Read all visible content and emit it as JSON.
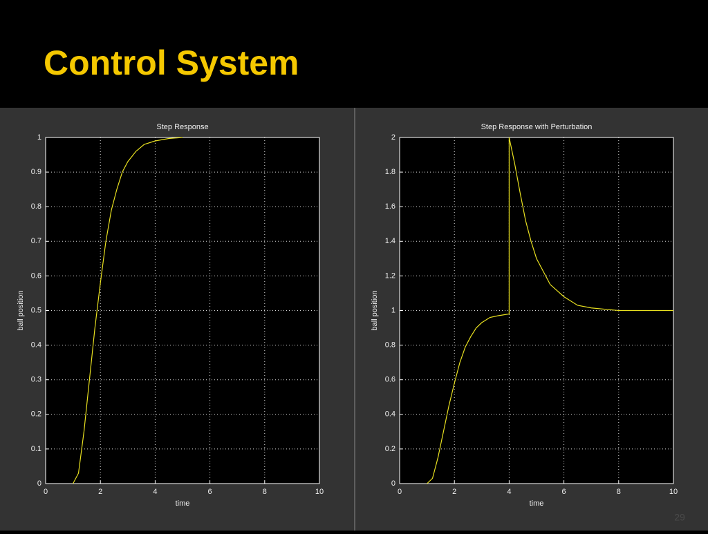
{
  "title": "Control System",
  "page_number": "29",
  "chart_data": [
    {
      "type": "line",
      "title": "Step Response",
      "xlabel": "time",
      "ylabel": "ball position",
      "x": [
        1.0,
        1.2,
        1.4,
        1.6,
        1.8,
        2.0,
        2.2,
        2.4,
        2.6,
        2.8,
        3.0,
        3.3,
        3.6,
        4.0,
        4.5,
        5.0
      ],
      "values": [
        0,
        0.03,
        0.15,
        0.3,
        0.45,
        0.58,
        0.7,
        0.79,
        0.85,
        0.9,
        0.93,
        0.96,
        0.98,
        0.99,
        0.997,
        1.0
      ],
      "color": "#e8e020",
      "xlim": [
        0,
        10
      ],
      "ylim": [
        0,
        1
      ],
      "xticks": [
        0,
        2,
        4,
        6,
        8,
        10
      ],
      "yticks": [
        0,
        0.1,
        0.2,
        0.3,
        0.4,
        0.5,
        0.6,
        0.7,
        0.8,
        0.9,
        1
      ],
      "grid": true
    },
    {
      "type": "line",
      "title": "Step Response with Perturbation",
      "xlabel": "time",
      "ylabel": "ball position",
      "x": [
        1.0,
        1.2,
        1.4,
        1.6,
        1.8,
        2.0,
        2.2,
        2.4,
        2.6,
        2.8,
        3.0,
        3.3,
        3.6,
        4.0,
        4.0,
        4.2,
        4.4,
        4.6,
        4.8,
        5.0,
        5.5,
        6.0,
        6.5,
        7.0,
        8.0,
        10.0
      ],
      "values": [
        0,
        0.03,
        0.15,
        0.3,
        0.45,
        0.58,
        0.7,
        0.79,
        0.85,
        0.9,
        0.93,
        0.96,
        0.97,
        0.98,
        2.0,
        1.85,
        1.68,
        1.52,
        1.4,
        1.3,
        1.15,
        1.08,
        1.03,
        1.015,
        1.0,
        1.0
      ],
      "color": "#e8e020",
      "xlim": [
        0,
        10
      ],
      "ylim": [
        0,
        2
      ],
      "xticks": [
        0,
        2,
        4,
        6,
        8,
        10
      ],
      "yticks": [
        0,
        0.2,
        0.4,
        0.6,
        0.8,
        1,
        1.2,
        1.4,
        1.6,
        1.8,
        2
      ],
      "grid": true
    }
  ]
}
